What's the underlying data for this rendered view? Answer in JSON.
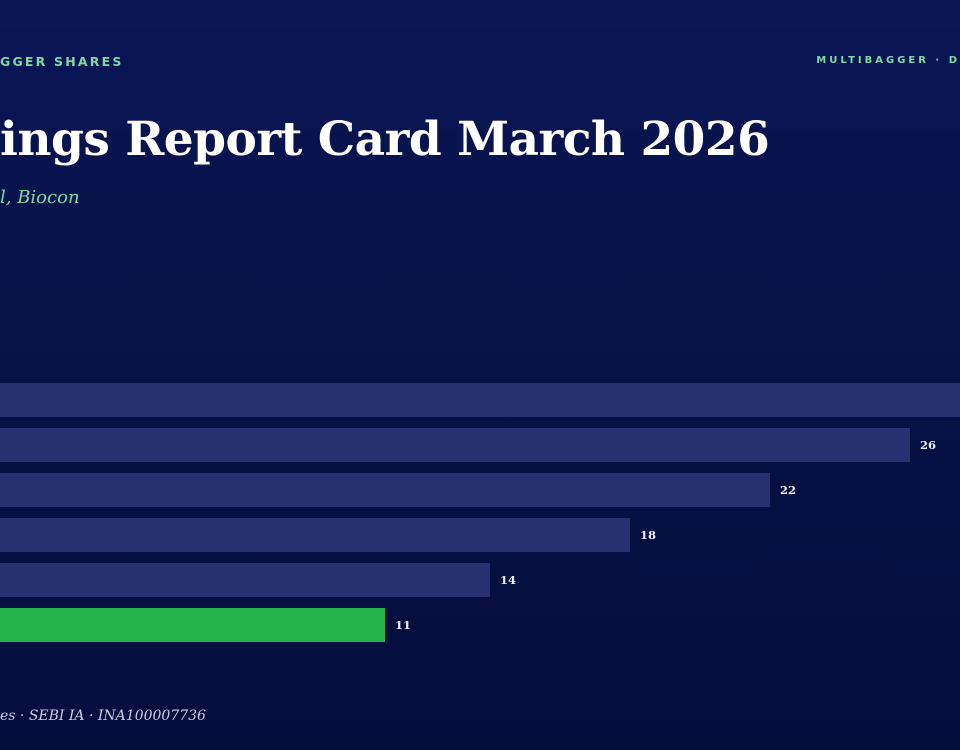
{
  "header": {
    "kicker": "GGER SHARES",
    "brand": "MULTIBAGGER · D",
    "title": "ings Report Card March 2026",
    "subtitle": "l, Biocon"
  },
  "footer": {
    "text": "es · SEBI IA · INA100007736"
  },
  "colors": {
    "accent": "#7fd9a3",
    "bar_default": "#27316f",
    "bar_highlight": "#22b24c"
  },
  "chart_data": {
    "type": "bar",
    "orientation": "horizontal",
    "title": "",
    "xlabel": "",
    "ylabel": "",
    "values": [
      null,
      26,
      22,
      18,
      14,
      11
    ],
    "value_labels": [
      "",
      "26",
      "22",
      "18",
      "14",
      "11"
    ],
    "highlight_index": 5,
    "xlim": [
      0,
      28
    ],
    "grid": false
  }
}
